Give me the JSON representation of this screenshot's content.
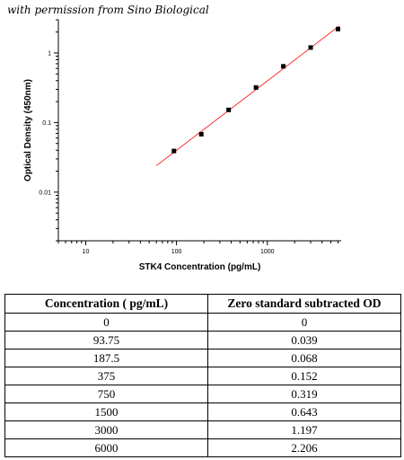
{
  "credit": "with permission from Sino Biological",
  "chart_data": {
    "type": "scatter",
    "xscale": "log",
    "yscale": "log",
    "xlim": [
      5,
      6500
    ],
    "ylim": [
      0.002,
      3
    ],
    "xticks": [
      10,
      100,
      1000
    ],
    "xtick_labels": [
      "10",
      "100",
      "1000"
    ],
    "yticks": [
      0.01,
      0.1,
      1
    ],
    "ytick_labels": [
      "0.01",
      "0.1",
      "1"
    ],
    "xlabel": "STK4 Concentration (pg/mL)",
    "ylabel": "Optical Density (450nm)",
    "grid": false,
    "series": [
      {
        "x": [
          93.75,
          187.5,
          375,
          750,
          1500,
          3000,
          6000
        ],
        "y": [
          0.039,
          0.068,
          0.152,
          0.319,
          0.643,
          1.197,
          2.206
        ],
        "marker": "square",
        "color": "#000000"
      }
    ],
    "fit_line": {
      "x": [
        60,
        6200
      ],
      "y": [
        0.024,
        2.45
      ],
      "color": "#ff0000"
    }
  },
  "table": {
    "headers": [
      "Concentration ( pg/mL)",
      "Zero standard subtracted OD"
    ],
    "rows": [
      [
        "0",
        "0"
      ],
      [
        "93.75",
        "0.039"
      ],
      [
        "187.5",
        "0.068"
      ],
      [
        "375",
        "0.152"
      ],
      [
        "750",
        "0.319"
      ],
      [
        "1500",
        "0.643"
      ],
      [
        "3000",
        "1.197"
      ],
      [
        "6000",
        "2.206"
      ]
    ]
  }
}
